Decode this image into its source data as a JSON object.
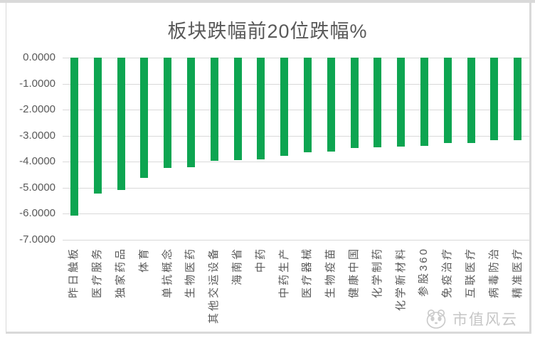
{
  "chart_data": {
    "type": "bar",
    "orientation": "vertical-negative",
    "title": "板块跌幅前20位跌幅%",
    "xlabel": "",
    "ylabel": "",
    "ylim": [
      -7,
      0
    ],
    "grid": true,
    "legend": false,
    "bar_color": "#0da551",
    "y_ticks": [
      "0.0000",
      "-1.0000",
      "-2.0000",
      "-3.0000",
      "-4.0000",
      "-5.0000",
      "-6.0000",
      "-7.0000"
    ],
    "categories": [
      "昨日触板",
      "医疗服务",
      "独家药品",
      "体育",
      "单抗概念",
      "生物医药",
      "其他交运设备",
      "海南省",
      "中药",
      "中药生产",
      "医疗器械",
      "生物疫苗",
      "健康中国",
      "化学制药",
      "化学新材料",
      "参股360",
      "免疫治疗",
      "互联医疗",
      "病毒防治",
      "精准医疗"
    ],
    "values": [
      -6.09,
      -5.24,
      -5.09,
      -4.63,
      -4.24,
      -4.22,
      -3.97,
      -3.95,
      -3.93,
      -3.79,
      -3.64,
      -3.63,
      -3.47,
      -3.46,
      -3.42,
      -3.4,
      -3.29,
      -3.28,
      -3.19,
      -3.18
    ]
  },
  "watermark": {
    "text": "市值风云",
    "logo": "panda-logo-icon",
    "color": "#c6c6c6"
  },
  "colors": {
    "bar": "#0da551",
    "grid": "#d9d9d9",
    "text": "#595959",
    "frame": "#d9d9d9"
  }
}
